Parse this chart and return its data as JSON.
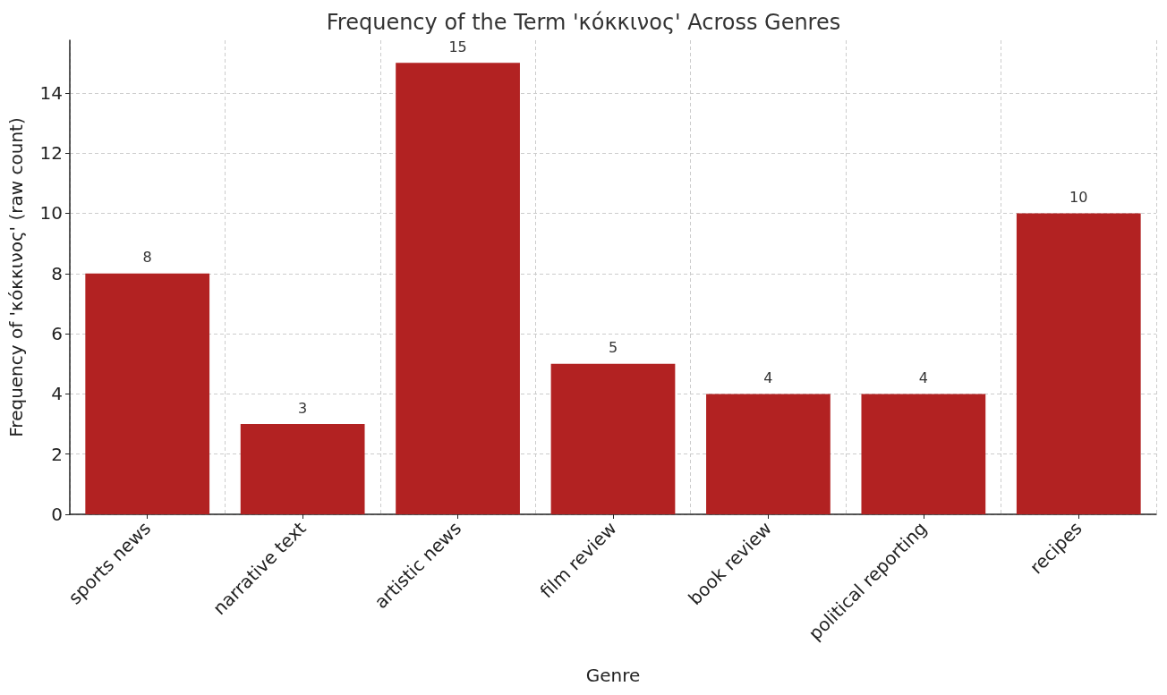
{
  "chart_data": {
    "type": "bar",
    "title": "Frequency of the Term 'κόκκινος' Across Genres",
    "xlabel": "Genre",
    "ylabel": "Frequency of 'κόκκινος' (raw count)",
    "categories": [
      "sports news",
      "narrative text",
      "artistic news",
      "film review",
      "book review",
      "political reporting",
      "recipes"
    ],
    "values": [
      8,
      3,
      15,
      5,
      4,
      4,
      10
    ],
    "color": "#b22222",
    "ylim": [
      0,
      15.75
    ],
    "yticks": [
      0,
      2,
      4,
      6,
      8,
      10,
      12,
      14
    ],
    "grid": true,
    "data_labels": true
  }
}
